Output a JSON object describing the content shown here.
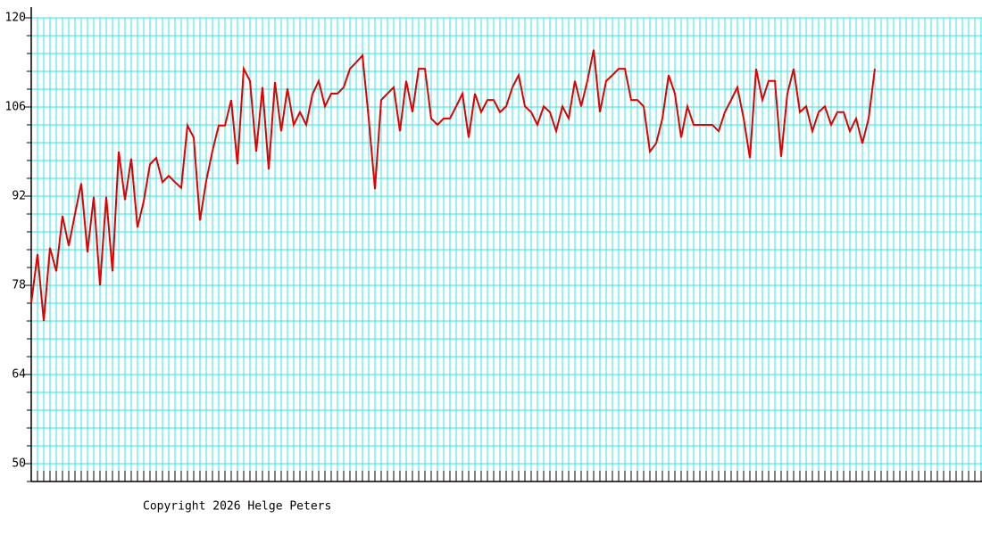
{
  "chart_data": {
    "type": "line",
    "color": "#e00000",
    "grid": true,
    "footer": "Copyright 2026 Helge Peters",
    "ylim": [
      47.2,
      120
    ],
    "yticks": [
      50,
      64,
      78,
      92,
      106,
      120
    ],
    "values": [
      75.2,
      82.9,
      72.4,
      83.9,
      80.2,
      88.9,
      84.2,
      89.2,
      94.0,
      83.2,
      91.9,
      78.0,
      91.9,
      80.2,
      99.0,
      91.4,
      97.9,
      87.1,
      91.2,
      97.0,
      98.0,
      94.2,
      95.2,
      94.2,
      93.3,
      103.1,
      101.2,
      88.2,
      94.4,
      99.1,
      103.1,
      103.1,
      107.1,
      97.0,
      112.0,
      110.1,
      99.0,
      109.1,
      96.2,
      109.9,
      102.2,
      108.9,
      103.2,
      105.2,
      103.2,
      108.0,
      110.1,
      106.1,
      108.1,
      108.1,
      109.1,
      112.0,
      113.0,
      114.1,
      104.2,
      93.1,
      107.1,
      108.1,
      109.1,
      102.2,
      110.1,
      105.2,
      112.0,
      112.0,
      104.2,
      103.2,
      104.2,
      104.2,
      106.1,
      108.1,
      101.2,
      108.1,
      105.2,
      107.1,
      107.1,
      105.2,
      106.1,
      109.1,
      111.0,
      106.1,
      105.2,
      103.2,
      106.1,
      105.2,
      102.2,
      106.1,
      104.2,
      110.1,
      106.1,
      110.1,
      115.0,
      105.2,
      110.1,
      111.0,
      112.0,
      112.0,
      107.1,
      107.1,
      106.1,
      99.0,
      100.3,
      104.2,
      111.0,
      108.1,
      101.2,
      106.1,
      103.2,
      103.2,
      103.2,
      103.2,
      102.2,
      105.2,
      107.1,
      109.1,
      104.2,
      98.0,
      112.0,
      107.1,
      110.1,
      110.1,
      98.2,
      108.1,
      112.0,
      105.2,
      106.1,
      102.2,
      105.2,
      106.1,
      103.2,
      105.2,
      105.2,
      102.2,
      104.2,
      100.3,
      104.2,
      112.0
    ]
  }
}
